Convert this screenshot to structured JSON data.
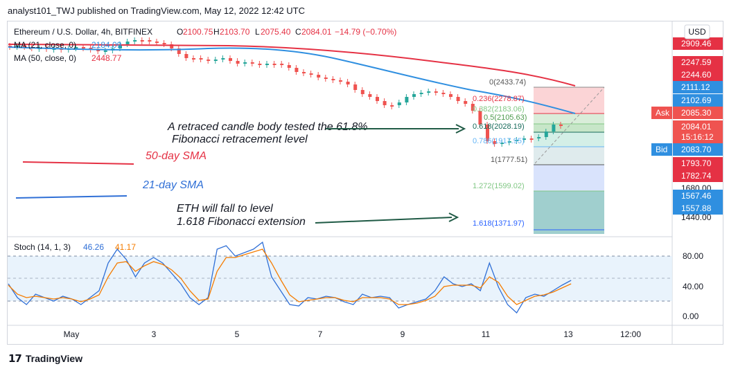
{
  "header": {
    "text": "analyst101_TWJ published on TradingView.com, May 12, 2022 12:42 UTC"
  },
  "footer": {
    "logo_icon": "tradingview-logo-icon",
    "brand": "TradingView"
  },
  "legend": {
    "symbol": "Ethereum / U.S. Dollar, 4h, BITFINEX",
    "o_label": "O",
    "o_value": "2100.75",
    "h_label": "H",
    "h_value": "2103.70",
    "l_label": "L",
    "l_value": "2075.40",
    "c_label": "C",
    "c_value": "2084.01",
    "change": "−14.79 (−0.70%)",
    "ma21_label": "MA (21, close, 0)",
    "ma21_value": "2184.09",
    "ma50_label": "MA (50, close, 0)",
    "ma50_value": "2448.77"
  },
  "colors": {
    "up": "#26a69a",
    "down": "#ef5350",
    "ma21": "#2f8fe0",
    "ma50": "#e53144",
    "annotation": "#1f5a45"
  },
  "annotations": {
    "retrace_line1": "A retraced candle body tested the 61.8%",
    "retrace_line2": "Fibonacci retracement level",
    "sma50": "50-day SMA",
    "sma21": "21-day SMA",
    "eth_line1": "ETH will fall to level",
    "eth_line2": "1.618 Fibonacci extension"
  },
  "fib_levels": [
    {
      "label": "0(2433.74)",
      "color": "#555555"
    },
    {
      "label": "0.236(2278.87)",
      "color": "#e53144"
    },
    {
      "label": "0.382(2183.06)",
      "color": "#81c784"
    },
    {
      "label": "0.5(2105.63)",
      "color": "#4c9a4c"
    },
    {
      "label": "0.618(2028.19)",
      "color": "#166a5a"
    },
    {
      "label": "0.786(1917.95)",
      "color": "#64b5f6"
    },
    {
      "label": "1(1777.51)",
      "color": "#555555"
    },
    {
      "label": "1.272(1599.02)",
      "color": "#81c784"
    },
    {
      "label": "1.618(1371.97)",
      "color": "#2962ff"
    }
  ],
  "price_axis": {
    "currency": "USD",
    "labels": [
      {
        "text": "2909.46",
        "bg": "#e53144",
        "color": "#ffffff"
      },
      {
        "text": "2247.59",
        "bg": "#e53144",
        "color": "#ffffff"
      },
      {
        "text": "2244.60",
        "bg": "#e53144",
        "color": "#ffffff"
      },
      {
        "text": "2111.12",
        "bg": "#2f8fe0",
        "color": "#ffffff"
      },
      {
        "text": "2102.69",
        "bg": "#2f8fe0",
        "color": "#ffffff"
      },
      {
        "text": "2085.30",
        "bg": "#ef5350",
        "color": "#ffffff",
        "tag": "Ask"
      },
      {
        "text": "2084.01",
        "bg": "#ef5350",
        "color": "#ffffff"
      },
      {
        "text": "15:16:12",
        "bg": "#ef5350",
        "color": "#ffffff"
      },
      {
        "text": "2083.70",
        "bg": "#2f8fe0",
        "color": "#ffffff",
        "tag": "Bid"
      },
      {
        "text": "1793.70",
        "bg": "#e53144",
        "color": "#ffffff"
      },
      {
        "text": "1782.74",
        "bg": "#e53144",
        "color": "#ffffff"
      },
      {
        "text": "1680.00",
        "bg": "none",
        "color": "#131722"
      },
      {
        "text": "1567.46",
        "bg": "#2f8fe0",
        "color": "#ffffff"
      },
      {
        "text": "1557.88",
        "bg": "#2f8fe0",
        "color": "#ffffff"
      },
      {
        "text": "1440.00",
        "bg": "none",
        "color": "#131722"
      }
    ]
  },
  "stoch": {
    "label": "Stoch (14, 1, 3)",
    "k_value": "46.26",
    "d_value": "41.17",
    "axis": [
      "80.00",
      "40.00",
      "0.00"
    ],
    "upper_band": 80,
    "lower_band": 20
  },
  "time_axis": [
    "May",
    "3",
    "5",
    "7",
    "9",
    "11",
    "13",
    "12:00"
  ],
  "chart_data": {
    "type": "candlestick",
    "symbol": "Ethereum / U.S. Dollar",
    "interval": "4h",
    "exchange": "BITFINEX",
    "ohlc_last": {
      "open": 2100.75,
      "high": 2103.7,
      "low": 2075.4,
      "close": 2084.01
    },
    "ma21_last": 2184.09,
    "ma50_last": 2448.77,
    "fib_retracement": {
      "high": 2433.74,
      "low": 1777.51
    },
    "stoch_last": {
      "k": 46.26,
      "d": 41.17
    }
  }
}
